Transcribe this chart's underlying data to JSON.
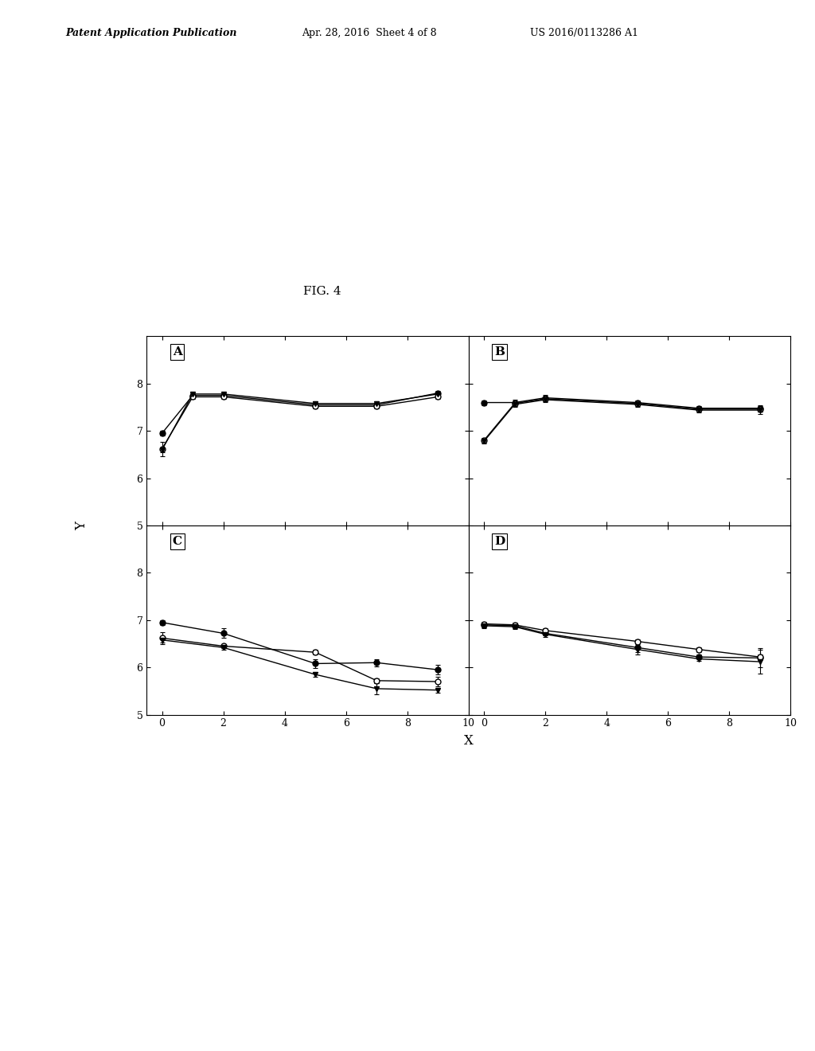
{
  "fig_label": "FIG. 4",
  "header_left": "Patent Application Publication",
  "header_mid": "Apr. 28, 2016  Sheet 4 of 8",
  "header_right": "US 2016/0113286 A1",
  "xlabel": "X",
  "ylabel": "Y",
  "xlim": [
    0,
    10
  ],
  "xticks": [
    0,
    2,
    4,
    6,
    8,
    10
  ],
  "subplot_labels": [
    "A",
    "B",
    "C",
    "D"
  ],
  "subplots": {
    "A": {
      "ylim": [
        5,
        9
      ],
      "yticks": [
        5,
        6,
        7,
        8
      ],
      "series": [
        {
          "x": [
            0,
            1,
            2,
            5,
            7,
            9
          ],
          "y": [
            6.95,
            7.75,
            7.75,
            7.55,
            7.55,
            7.8
          ],
          "yerr": [
            0.05,
            0.05,
            0.05,
            0.05,
            0.05,
            0.05
          ],
          "marker": "o",
          "filled": true,
          "color": "black"
        },
        {
          "x": [
            0,
            1,
            2,
            5,
            7,
            9
          ],
          "y": [
            6.62,
            7.72,
            7.72,
            7.52,
            7.52,
            7.72
          ],
          "yerr": [
            0.15,
            0.05,
            0.05,
            0.05,
            0.05,
            0.05
          ],
          "marker": "o",
          "filled": false,
          "color": "black"
        },
        {
          "x": [
            0,
            1,
            2,
            5,
            7,
            9
          ],
          "y": [
            6.6,
            7.78,
            7.78,
            7.58,
            7.58,
            7.78
          ],
          "yerr": [
            0.05,
            0.05,
            0.05,
            0.05,
            0.05,
            0.05
          ],
          "marker": "v",
          "filled": true,
          "color": "black"
        }
      ]
    },
    "B": {
      "ylim": [
        5,
        9
      ],
      "yticks": [
        5,
        6,
        7,
        8
      ],
      "series": [
        {
          "x": [
            0,
            1,
            2,
            5,
            7,
            9
          ],
          "y": [
            7.6,
            7.6,
            7.7,
            7.6,
            7.48,
            7.48
          ],
          "yerr": [
            0.05,
            0.06,
            0.06,
            0.05,
            0.05,
            0.07
          ],
          "marker": "o",
          "filled": true,
          "color": "black"
        },
        {
          "x": [
            0,
            1,
            2,
            5,
            7,
            9
          ],
          "y": [
            6.8,
            7.58,
            7.68,
            7.58,
            7.46,
            7.46
          ],
          "yerr": [
            0.05,
            0.05,
            0.05,
            0.05,
            0.05,
            0.05
          ],
          "marker": "o",
          "filled": false,
          "color": "black"
        },
        {
          "x": [
            0,
            1,
            2,
            5,
            7,
            9
          ],
          "y": [
            6.78,
            7.56,
            7.66,
            7.56,
            7.44,
            7.44
          ],
          "yerr": [
            0.05,
            0.05,
            0.05,
            0.05,
            0.05,
            0.08
          ],
          "marker": "v",
          "filled": true,
          "color": "black"
        }
      ]
    },
    "C": {
      "ylim": [
        5,
        9
      ],
      "yticks": [
        5,
        6,
        7,
        8
      ],
      "series": [
        {
          "x": [
            0,
            2,
            5,
            7,
            9
          ],
          "y": [
            6.95,
            6.72,
            6.08,
            6.1,
            5.95
          ],
          "yerr": [
            0.05,
            0.1,
            0.1,
            0.08,
            0.1
          ],
          "marker": "o",
          "filled": true,
          "color": "black"
        },
        {
          "x": [
            0,
            2,
            5,
            7,
            9
          ],
          "y": [
            6.62,
            6.45,
            6.32,
            5.72,
            5.7
          ],
          "yerr": [
            0.12,
            0.05,
            0.05,
            0.05,
            0.1
          ],
          "marker": "o",
          "filled": false,
          "color": "black"
        },
        {
          "x": [
            0,
            2,
            5,
            7,
            9
          ],
          "y": [
            6.58,
            6.42,
            5.85,
            5.55,
            5.52
          ],
          "yerr": [
            0.05,
            0.05,
            0.05,
            0.12,
            0.05
          ],
          "marker": "v",
          "filled": true,
          "color": "black"
        }
      ]
    },
    "D": {
      "ylim": [
        5,
        9
      ],
      "yticks": [
        5,
        6,
        7,
        8
      ],
      "series": [
        {
          "x": [
            0,
            1,
            2,
            5,
            7,
            9
          ],
          "y": [
            6.9,
            6.88,
            6.72,
            6.42,
            6.22,
            6.2
          ],
          "yerr": [
            0.05,
            0.05,
            0.05,
            0.15,
            0.05,
            0.2
          ],
          "marker": "o",
          "filled": true,
          "color": "black"
        },
        {
          "x": [
            0,
            1,
            2,
            5,
            7,
            9
          ],
          "y": [
            6.92,
            6.9,
            6.78,
            6.55,
            6.38,
            6.22
          ],
          "yerr": [
            0.05,
            0.05,
            0.05,
            0.05,
            0.05,
            0.05
          ],
          "marker": "o",
          "filled": false,
          "color": "black"
        },
        {
          "x": [
            0,
            1,
            2,
            5,
            7,
            9
          ],
          "y": [
            6.88,
            6.86,
            6.7,
            6.38,
            6.18,
            6.12
          ],
          "yerr": [
            0.05,
            0.05,
            0.05,
            0.05,
            0.05,
            0.25
          ],
          "marker": "v",
          "filled": true,
          "color": "black"
        }
      ]
    }
  }
}
